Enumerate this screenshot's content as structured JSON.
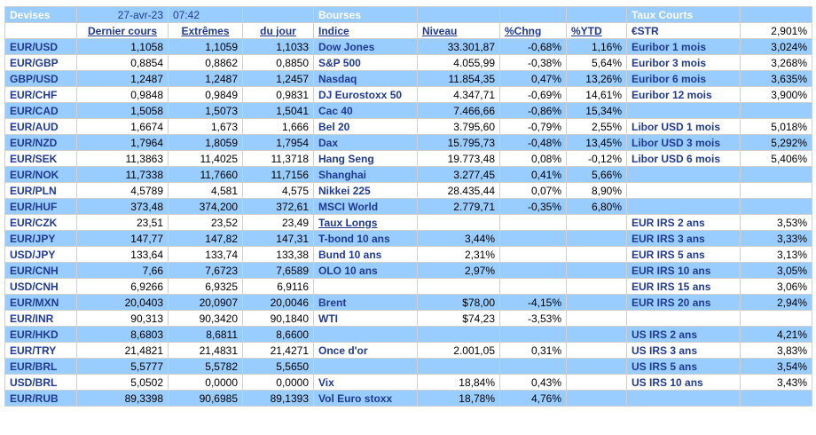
{
  "header": {
    "devises": "Devises",
    "date": "27-avr-23",
    "time": "07:42",
    "bourses": "Bourses",
    "taux_courts": "Taux Courts"
  },
  "subheader": {
    "dernier_cours": "Dernier cours",
    "extremes": "Extrêmes",
    "du_jour": "du jour",
    "indice": "Indice",
    "niveau": "Niveau",
    "chng": "%Chng",
    "ytd": "%YTD",
    "estr_label": "€STR",
    "estr_value": "2,901%"
  },
  "rows": [
    {
      "fx": "EUR/USD",
      "last": "1,1058",
      "high": "1,1059",
      "low": "1,1033",
      "idx": "Dow Jones",
      "level": "33.301,87",
      "chng": "-0,68%",
      "ytd": "1,16%",
      "rate": "Euribor 1 mois",
      "rv": "3,024%"
    },
    {
      "fx": "EUR/GBP",
      "last": "0,8854",
      "high": "0,8862",
      "low": "0,8850",
      "idx": "S&P 500",
      "level": "4.055,99",
      "chng": "-0,38%",
      "ytd": "5,64%",
      "rate": "Euribor 3 mois",
      "rv": "3,268%"
    },
    {
      "fx": "GBP/USD",
      "last": "1,2487",
      "high": "1,2487",
      "low": "1,2457",
      "idx": "Nasdaq",
      "level": "11.854,35",
      "chng": "0,47%",
      "ytd": "13,26%",
      "rate": "Euribor 6 mois",
      "rv": "3,635%"
    },
    {
      "fx": "EUR/CHF",
      "last": "0,9848",
      "high": "0,9849",
      "low": "0,9831",
      "idx": "DJ Eurostoxx 50",
      "level": "4.347,71",
      "chng": "-0,69%",
      "ytd": "14,61%",
      "rate": "Euribor 12 mois",
      "rv": "3,900%"
    },
    {
      "fx": "EUR/CAD",
      "last": "1,5058",
      "high": "1,5073",
      "low": "1,5041",
      "idx": "Cac 40",
      "level": "7.466,66",
      "chng": "-0,86%",
      "ytd": "15,34%",
      "rate": "",
      "rv": ""
    },
    {
      "fx": "EUR/AUD",
      "last": "1,6674",
      "high": "1,673",
      "low": "1,666",
      "idx": "Bel 20",
      "level": "3.795,60",
      "chng": "-0,79%",
      "ytd": "2,55%",
      "rate": "Libor USD 1 mois",
      "rv": "5,018%"
    },
    {
      "fx": "EUR/NZD",
      "last": "1,7964",
      "high": "1,8059",
      "low": "1,7954",
      "idx": "Dax",
      "level": "15.795,73",
      "chng": "-0,48%",
      "ytd": "13,45%",
      "rate": "Libor USD 3 mois",
      "rv": "5,292%"
    },
    {
      "fx": "EUR/SEK",
      "last": "11,3863",
      "high": "11,4025",
      "low": "11,3718",
      "idx": "Hang Seng",
      "level": "19.773,48",
      "chng": "0,08%",
      "ytd": "-0,12%",
      "rate": "Libor USD 6 mois",
      "rv": "5,406%"
    },
    {
      "fx": "EUR/NOK",
      "last": "11,7338",
      "high": "11,7660",
      "low": "11,7156",
      "idx": "Shanghai",
      "level": "3.277,45",
      "chng": "0,41%",
      "ytd": "5,66%",
      "rate": "",
      "rv": ""
    },
    {
      "fx": "EUR/PLN",
      "last": "4,5789",
      "high": "4,581",
      "low": "4,575",
      "idx": "Nikkei 225",
      "level": "28.435,44",
      "chng": "0,07%",
      "ytd": "8,90%",
      "rate": "",
      "rv": ""
    },
    {
      "fx": "EUR/HUF",
      "last": "373,48",
      "high": "374,200",
      "low": "372,61",
      "idx": "MSCI World",
      "level": "2.779,71",
      "chng": "-0,35%",
      "ytd": "6,80%",
      "rate": "",
      "rv": ""
    },
    {
      "fx": "EUR/CZK",
      "last": "23,51",
      "high": "23,52",
      "low": "23,49",
      "idx": "Taux Longs",
      "level": "",
      "chng": "",
      "ytd": "",
      "rate": "EUR IRS 2 ans",
      "rv": "3,53%"
    },
    {
      "fx": "EUR/JPY",
      "last": "147,77",
      "high": "147,82",
      "low": "147,31",
      "idx": "T-bond 10 ans",
      "level": "3,44%",
      "chng": "",
      "ytd": "",
      "rate": "EUR IRS 3 ans",
      "rv": "3,33%"
    },
    {
      "fx": "USD/JPY",
      "last": "133,64",
      "high": "133,74",
      "low": "133,38",
      "idx": "Bund 10 ans",
      "level": "2,31%",
      "chng": "",
      "ytd": "",
      "rate": "EUR IRS 5 ans",
      "rv": "3,13%"
    },
    {
      "fx": "EUR/CNH",
      "last": "7,66",
      "high": "7,6723",
      "low": "7,6589",
      "idx": "OLO 10 ans",
      "level": "2,97%",
      "chng": "",
      "ytd": "",
      "rate": "EUR IRS 10 ans",
      "rv": "3,05%"
    },
    {
      "fx": "USD/CNH",
      "last": "6,9266",
      "high": "6,9325",
      "low": "6,9116",
      "idx": "",
      "level": "",
      "chng": "",
      "ytd": "",
      "rate": "EUR IRS 15 ans",
      "rv": "3,06%"
    },
    {
      "fx": "EUR/MXN",
      "last": "20,0403",
      "high": "20,0907",
      "low": "20,0046",
      "idx": "Brent",
      "level": "$78,00",
      "chng": "-4,15%",
      "ytd": "",
      "rate": "EUR IRS 20 ans",
      "rv": "2,94%"
    },
    {
      "fx": "EUR/INR",
      "last": "90,313",
      "high": "90,3420",
      "low": "90,1840",
      "idx": "WTI",
      "level": "$74,23",
      "chng": "-3,53%",
      "ytd": "",
      "rate": "",
      "rv": ""
    },
    {
      "fx": "EUR/HKD",
      "last": "8,6803",
      "high": "8,6811",
      "low": "8,6600",
      "idx": "",
      "level": "",
      "chng": "",
      "ytd": "",
      "rate": "US IRS 2 ans",
      "rv": "4,21%"
    },
    {
      "fx": "EUR/TRY",
      "last": "21,4821",
      "high": "21,4831",
      "low": "21,4271",
      "idx": "Once d'or",
      "level": "2.001,05",
      "chng": "0,31%",
      "ytd": "",
      "rate": "US IRS 3 ans",
      "rv": "3,83%"
    },
    {
      "fx": "EUR/BRL",
      "last": "5,5777",
      "high": "5,5782",
      "low": "5,5650",
      "idx": "",
      "level": "",
      "chng": "",
      "ytd": "",
      "rate": "US IRS 5 ans",
      "rv": "3,54%"
    },
    {
      "fx": "USD/BRL",
      "last": "5,0502",
      "high": "0,0000",
      "low": "0,0000",
      "idx": "Vix",
      "level": "18,84%",
      "chng": "0,43%",
      "ytd": "",
      "rate": "US IRS 10 ans",
      "rv": "3,43%"
    },
    {
      "fx": "EUR/RUB",
      "last": "89,3398",
      "high": "90,6985",
      "low": "89,1393",
      "idx": "Vol Euro stoxx",
      "level": "18,78%",
      "chng": "4,76%",
      "ytd": "",
      "rate": "",
      "rv": ""
    }
  ],
  "colors": {
    "blue_band": "#99ccff",
    "white": "#ffffff",
    "grid_line": "#d0d0d0"
  }
}
